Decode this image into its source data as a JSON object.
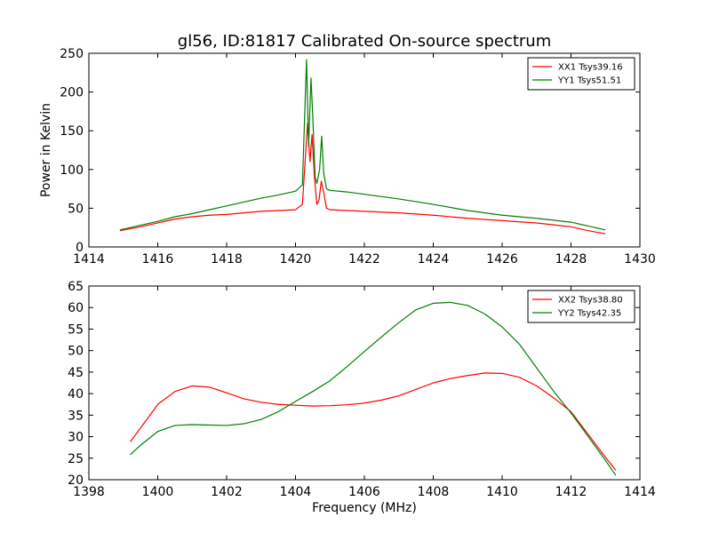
{
  "figure": {
    "title": "gl56, ID:81817 Calibrated On-source spectrum"
  },
  "chart_data": [
    {
      "type": "line",
      "ylabel": "Power in Kelvin",
      "xlabel": "",
      "xlim": [
        1414,
        1430
      ],
      "ylim": [
        0,
        250
      ],
      "xticks": [
        "1414",
        "1416",
        "1418",
        "1420",
        "1422",
        "1424",
        "1426",
        "1428",
        "1430"
      ],
      "yticks": [
        "0",
        "50",
        "100",
        "150",
        "200",
        "250"
      ],
      "grid": false,
      "legend_position": "top-right",
      "series": [
        {
          "name": "XX1 Tsys39.16",
          "color": "#ff0000",
          "x": [
            1414.9,
            1415.5,
            1416.0,
            1416.5,
            1417.0,
            1417.5,
            1418.0,
            1418.5,
            1419.0,
            1419.5,
            1420.0,
            1420.2,
            1420.35,
            1420.42,
            1420.48,
            1420.55,
            1420.62,
            1420.68,
            1420.75,
            1420.82,
            1420.9,
            1421.0,
            1421.5,
            1422.0,
            1423.0,
            1424.0,
            1425.0,
            1426.0,
            1427.0,
            1428.0,
            1428.5,
            1429.0
          ],
          "y": [
            21,
            26,
            31,
            36,
            39,
            41,
            42,
            44,
            46,
            47,
            48,
            55,
            160,
            110,
            145,
            90,
            55,
            60,
            85,
            70,
            50,
            48,
            47,
            46,
            44,
            41,
            37,
            34,
            31,
            26,
            21,
            17
          ]
        },
        {
          "name": "YY1 Tsys51.51",
          "color": "#008000",
          "x": [
            1414.9,
            1415.5,
            1416.0,
            1416.5,
            1417.0,
            1417.5,
            1418.0,
            1418.5,
            1419.0,
            1419.5,
            1420.0,
            1420.2,
            1420.32,
            1420.38,
            1420.45,
            1420.5,
            1420.57,
            1420.62,
            1420.7,
            1420.76,
            1420.82,
            1420.9,
            1421.0,
            1421.5,
            1422.0,
            1423.0,
            1424.0,
            1425.0,
            1426.0,
            1427.0,
            1428.0,
            1428.5,
            1429.0
          ],
          "y": [
            22,
            28,
            33,
            39,
            43,
            48,
            53,
            58,
            63,
            67,
            72,
            80,
            242,
            130,
            218,
            170,
            90,
            82,
            100,
            143,
            95,
            75,
            73,
            71,
            68,
            62,
            55,
            47,
            41,
            37,
            32,
            27,
            22
          ]
        }
      ]
    },
    {
      "type": "line",
      "ylabel": "",
      "xlabel": "Frequency (MHz)",
      "xlim": [
        1398,
        1414
      ],
      "ylim": [
        20,
        65
      ],
      "xticks": [
        "1398",
        "1400",
        "1402",
        "1404",
        "1406",
        "1408",
        "1410",
        "1412",
        "1414"
      ],
      "yticks": [
        "20",
        "25",
        "30",
        "35",
        "40",
        "45",
        "50",
        "55",
        "60",
        "65"
      ],
      "grid": false,
      "legend_position": "top-right",
      "series": [
        {
          "name": "XX2 Tsys38.80",
          "color": "#ff0000",
          "x": [
            1399.2,
            1399.5,
            1400.0,
            1400.5,
            1401.0,
            1401.5,
            1402.0,
            1402.5,
            1403.0,
            1403.5,
            1404.0,
            1404.5,
            1405.0,
            1405.5,
            1406.0,
            1406.5,
            1407.0,
            1407.5,
            1408.0,
            1408.5,
            1409.0,
            1409.5,
            1410.0,
            1410.5,
            1411.0,
            1411.5,
            1412.0,
            1412.5,
            1413.0,
            1413.3
          ],
          "y": [
            28.8,
            32,
            37.5,
            40.5,
            41.8,
            41.5,
            40.2,
            38.8,
            38,
            37.5,
            37.3,
            37.1,
            37.2,
            37.4,
            37.8,
            38.5,
            39.5,
            41,
            42.5,
            43.5,
            44.2,
            44.8,
            44.7,
            43.8,
            41.8,
            39,
            35.8,
            30.5,
            25.2,
            22.2
          ]
        },
        {
          "name": "YY2 Tsys42.35",
          "color": "#008000",
          "x": [
            1399.2,
            1399.5,
            1400.0,
            1400.5,
            1401.0,
            1401.5,
            1402.0,
            1402.5,
            1403.0,
            1403.5,
            1404.0,
            1404.5,
            1405.0,
            1405.5,
            1406.0,
            1406.5,
            1407.0,
            1407.5,
            1408.0,
            1408.5,
            1409.0,
            1409.5,
            1410.0,
            1410.5,
            1411.0,
            1411.5,
            1412.0,
            1412.5,
            1413.0,
            1413.3
          ],
          "y": [
            25.8,
            28,
            31.2,
            32.6,
            32.8,
            32.7,
            32.6,
            33,
            34,
            35.8,
            38.2,
            40.5,
            43,
            46.3,
            49.8,
            53.2,
            56.5,
            59.5,
            61,
            61.2,
            60.5,
            58.5,
            55.5,
            51.5,
            46,
            40.5,
            35.5,
            30,
            24.5,
            21
          ]
        }
      ]
    }
  ]
}
